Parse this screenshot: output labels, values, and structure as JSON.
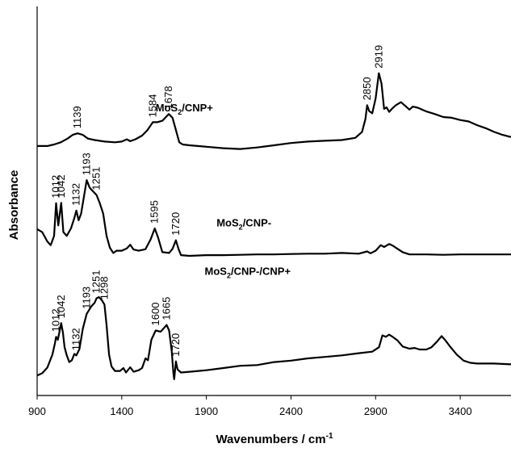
{
  "chart_data": {
    "type": "line",
    "xlabel": "Wavenumbers / cm",
    "xlabel_sup": "-1",
    "ylabel": "Absorbance",
    "xlim": [
      900,
      3700
    ],
    "ylim": [
      0,
      1
    ],
    "x_ticks": [
      900,
      1400,
      1900,
      2400,
      2900,
      3400
    ],
    "series": [
      {
        "name": "MoS₂/CNP+",
        "label_main": "MoS",
        "label_sub": "2",
        "label_rest": "/CNP+",
        "label_pos": [
          1600,
          0.765
        ],
        "peaks": [
          {
            "x": 1139,
            "label": "1139"
          },
          {
            "x": 1584,
            "label": "1584"
          },
          {
            "x": 1678,
            "label": "1678"
          },
          {
            "x": 2850,
            "label": "2850"
          },
          {
            "x": 2919,
            "label": "2919"
          }
        ],
        "points": [
          [
            900,
            0.672
          ],
          [
            960,
            0.672
          ],
          [
            1000,
            0.676
          ],
          [
            1040,
            0.682
          ],
          [
            1080,
            0.692
          ],
          [
            1110,
            0.702
          ],
          [
            1139,
            0.706
          ],
          [
            1170,
            0.702
          ],
          [
            1200,
            0.692
          ],
          [
            1240,
            0.688
          ],
          [
            1300,
            0.684
          ],
          [
            1360,
            0.682
          ],
          [
            1400,
            0.684
          ],
          [
            1430,
            0.69
          ],
          [
            1450,
            0.685
          ],
          [
            1480,
            0.69
          ],
          [
            1520,
            0.7
          ],
          [
            1550,
            0.714
          ],
          [
            1584,
            0.736
          ],
          [
            1610,
            0.736
          ],
          [
            1640,
            0.74
          ],
          [
            1678,
            0.758
          ],
          [
            1700,
            0.748
          ],
          [
            1720,
            0.715
          ],
          [
            1740,
            0.682
          ],
          [
            1760,
            0.676
          ],
          [
            1800,
            0.674
          ],
          [
            1900,
            0.67
          ],
          [
            2000,
            0.666
          ],
          [
            2100,
            0.664
          ],
          [
            2200,
            0.668
          ],
          [
            2300,
            0.674
          ],
          [
            2400,
            0.68
          ],
          [
            2500,
            0.684
          ],
          [
            2600,
            0.686
          ],
          [
            2700,
            0.688
          ],
          [
            2780,
            0.694
          ],
          [
            2820,
            0.71
          ],
          [
            2840,
            0.745
          ],
          [
            2850,
            0.782
          ],
          [
            2862,
            0.766
          ],
          [
            2880,
            0.76
          ],
          [
            2900,
            0.8
          ],
          [
            2919,
            0.868
          ],
          [
            2935,
            0.84
          ],
          [
            2950,
            0.772
          ],
          [
            2965,
            0.776
          ],
          [
            2980,
            0.764
          ],
          [
            3000,
            0.774
          ],
          [
            3020,
            0.782
          ],
          [
            3050,
            0.79
          ],
          [
            3080,
            0.778
          ],
          [
            3100,
            0.77
          ],
          [
            3120,
            0.778
          ],
          [
            3150,
            0.775
          ],
          [
            3200,
            0.765
          ],
          [
            3250,
            0.758
          ],
          [
            3300,
            0.75
          ],
          [
            3350,
            0.748
          ],
          [
            3400,
            0.742
          ],
          [
            3450,
            0.738
          ],
          [
            3500,
            0.728
          ],
          [
            3550,
            0.72
          ],
          [
            3600,
            0.71
          ],
          [
            3650,
            0.702
          ],
          [
            3700,
            0.696
          ]
        ]
      },
      {
        "name": "MoS₂/CNP-",
        "label_main": "MoS",
        "label_sub": "2",
        "label_rest": "/CNP-",
        "label_pos": [
          1960,
          0.455
        ],
        "peaks": [
          {
            "x": 1012,
            "label": "1012"
          },
          {
            "x": 1042,
            "label": "1042"
          },
          {
            "x": 1132,
            "label": "1132"
          },
          {
            "x": 1193,
            "label": "1193"
          },
          {
            "x": 1251,
            "label": "1251"
          },
          {
            "x": 1595,
            "label": "1595"
          },
          {
            "x": 1720,
            "label": "1720"
          }
        ],
        "points": [
          [
            900,
            0.448
          ],
          [
            930,
            0.44
          ],
          [
            960,
            0.415
          ],
          [
            980,
            0.405
          ],
          [
            1000,
            0.43
          ],
          [
            1012,
            0.518
          ],
          [
            1025,
            0.458
          ],
          [
            1042,
            0.519
          ],
          [
            1055,
            0.44
          ],
          [
            1075,
            0.43
          ],
          [
            1100,
            0.45
          ],
          [
            1120,
            0.478
          ],
          [
            1132,
            0.498
          ],
          [
            1145,
            0.472
          ],
          [
            1160,
            0.49
          ],
          [
            1180,
            0.545
          ],
          [
            1193,
            0.58
          ],
          [
            1210,
            0.56
          ],
          [
            1230,
            0.55
          ],
          [
            1251,
            0.54
          ],
          [
            1270,
            0.518
          ],
          [
            1290,
            0.49
          ],
          [
            1310,
            0.43
          ],
          [
            1330,
            0.398
          ],
          [
            1350,
            0.384
          ],
          [
            1370,
            0.39
          ],
          [
            1400,
            0.39
          ],
          [
            1430,
            0.396
          ],
          [
            1450,
            0.406
          ],
          [
            1470,
            0.393
          ],
          [
            1500,
            0.39
          ],
          [
            1540,
            0.394
          ],
          [
            1570,
            0.42
          ],
          [
            1595,
            0.45
          ],
          [
            1615,
            0.425
          ],
          [
            1640,
            0.386
          ],
          [
            1680,
            0.384
          ],
          [
            1700,
            0.395
          ],
          [
            1720,
            0.418
          ],
          [
            1735,
            0.395
          ],
          [
            1750,
            0.378
          ],
          [
            1800,
            0.376
          ],
          [
            1900,
            0.378
          ],
          [
            2000,
            0.378
          ],
          [
            2100,
            0.379
          ],
          [
            2200,
            0.38
          ],
          [
            2300,
            0.38
          ],
          [
            2400,
            0.381
          ],
          [
            2500,
            0.382
          ],
          [
            2600,
            0.382
          ],
          [
            2700,
            0.384
          ],
          [
            2800,
            0.382
          ],
          [
            2850,
            0.388
          ],
          [
            2870,
            0.383
          ],
          [
            2900,
            0.39
          ],
          [
            2930,
            0.405
          ],
          [
            2950,
            0.4
          ],
          [
            2980,
            0.408
          ],
          [
            3000,
            0.404
          ],
          [
            3030,
            0.395
          ],
          [
            3060,
            0.386
          ],
          [
            3100,
            0.38
          ],
          [
            3200,
            0.38
          ],
          [
            3300,
            0.379
          ],
          [
            3400,
            0.38
          ],
          [
            3500,
            0.38
          ],
          [
            3600,
            0.38
          ],
          [
            3700,
            0.38
          ]
        ]
      },
      {
        "name": "MoS₂/CNP-/CNP+",
        "label_main": "MoS",
        "label_sub": "2",
        "label_rest": "/CNP-/CNP+",
        "label_pos": [
          1890,
          0.325
        ],
        "peaks": [
          {
            "x": 1012,
            "label": "1012"
          },
          {
            "x": 1042,
            "label": "1042"
          },
          {
            "x": 1132,
            "label": "1132"
          },
          {
            "x": 1193,
            "label": "1193"
          },
          {
            "x": 1251,
            "label": "1251"
          },
          {
            "x": 1298,
            "label": "1298"
          },
          {
            "x": 1600,
            "label": "1600"
          },
          {
            "x": 1665,
            "label": "1665"
          },
          {
            "x": 1720,
            "label": "1720"
          }
        ],
        "points": [
          [
            900,
            0.054
          ],
          [
            930,
            0.06
          ],
          [
            960,
            0.075
          ],
          [
            990,
            0.11
          ],
          [
            1005,
            0.14
          ],
          [
            1012,
            0.158
          ],
          [
            1022,
            0.15
          ],
          [
            1035,
            0.178
          ],
          [
            1042,
            0.195
          ],
          [
            1052,
            0.17
          ],
          [
            1062,
            0.13
          ],
          [
            1075,
            0.108
          ],
          [
            1090,
            0.09
          ],
          [
            1105,
            0.095
          ],
          [
            1120,
            0.112
          ],
          [
            1132,
            0.108
          ],
          [
            1150,
            0.125
          ],
          [
            1170,
            0.18
          ],
          [
            1193,
            0.22
          ],
          [
            1220,
            0.24
          ],
          [
            1240,
            0.25
          ],
          [
            1251,
            0.262
          ],
          [
            1265,
            0.265
          ],
          [
            1280,
            0.258
          ],
          [
            1298,
            0.245
          ],
          [
            1310,
            0.19
          ],
          [
            1325,
            0.11
          ],
          [
            1340,
            0.078
          ],
          [
            1360,
            0.066
          ],
          [
            1390,
            0.066
          ],
          [
            1410,
            0.074
          ],
          [
            1425,
            0.062
          ],
          [
            1450,
            0.076
          ],
          [
            1470,
            0.064
          ],
          [
            1500,
            0.068
          ],
          [
            1520,
            0.074
          ],
          [
            1540,
            0.1
          ],
          [
            1555,
            0.095
          ],
          [
            1575,
            0.15
          ],
          [
            1600,
            0.175
          ],
          [
            1630,
            0.172
          ],
          [
            1650,
            0.182
          ],
          [
            1665,
            0.19
          ],
          [
            1680,
            0.175
          ],
          [
            1695,
            0.12
          ],
          [
            1705,
            0.06
          ],
          [
            1710,
            0.044
          ],
          [
            1720,
            0.092
          ],
          [
            1730,
            0.07
          ],
          [
            1750,
            0.062
          ],
          [
            1800,
            0.064
          ],
          [
            1900,
            0.068
          ],
          [
            2000,
            0.074
          ],
          [
            2100,
            0.08
          ],
          [
            2200,
            0.082
          ],
          [
            2300,
            0.09
          ],
          [
            2400,
            0.094
          ],
          [
            2500,
            0.1
          ],
          [
            2600,
            0.104
          ],
          [
            2700,
            0.108
          ],
          [
            2800,
            0.114
          ],
          [
            2880,
            0.118
          ],
          [
            2920,
            0.13
          ],
          [
            2940,
            0.162
          ],
          [
            2960,
            0.158
          ],
          [
            2980,
            0.164
          ],
          [
            3000,
            0.158
          ],
          [
            3030,
            0.148
          ],
          [
            3060,
            0.132
          ],
          [
            3100,
            0.126
          ],
          [
            3130,
            0.128
          ],
          [
            3160,
            0.124
          ],
          [
            3200,
            0.124
          ],
          [
            3230,
            0.13
          ],
          [
            3260,
            0.144
          ],
          [
            3290,
            0.16
          ],
          [
            3310,
            0.15
          ],
          [
            3340,
            0.132
          ],
          [
            3380,
            0.11
          ],
          [
            3420,
            0.094
          ],
          [
            3460,
            0.088
          ],
          [
            3500,
            0.086
          ],
          [
            3600,
            0.086
          ],
          [
            3700,
            0.084
          ]
        ]
      }
    ]
  }
}
